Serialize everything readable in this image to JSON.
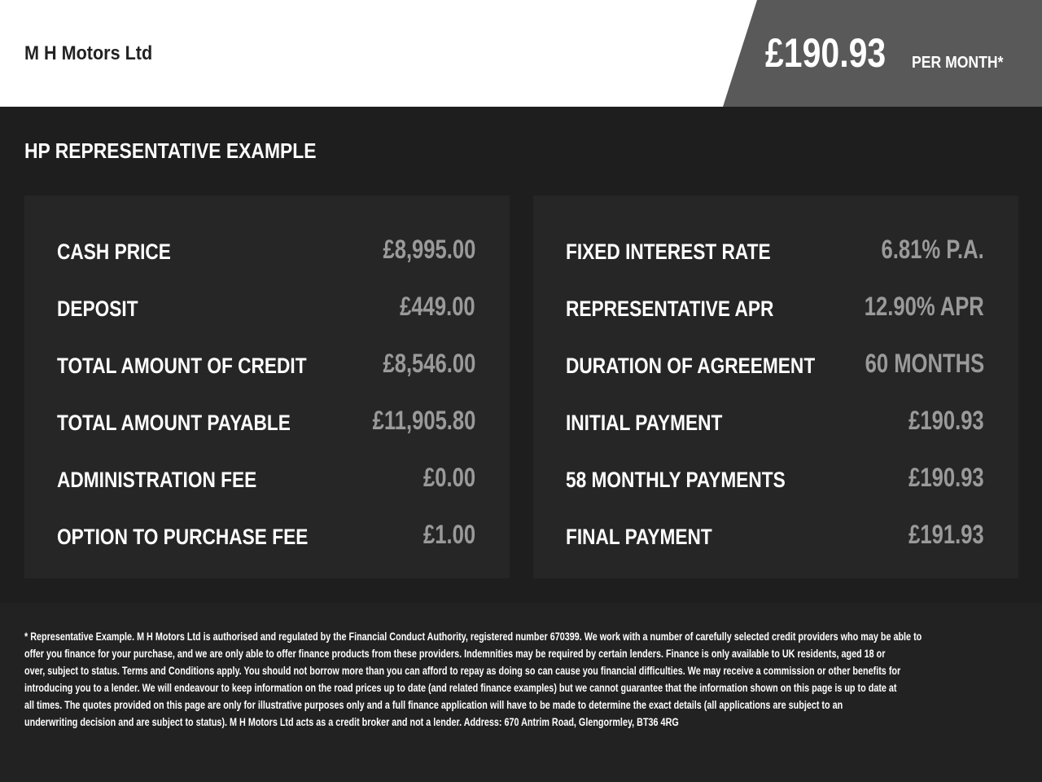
{
  "header": {
    "dealer": "M H Motors Ltd",
    "price": "£190.93",
    "per_month": "PER MONTH*"
  },
  "title": "HP REPRESENTATIVE EXAMPLE",
  "left": [
    {
      "label": "CASH PRICE",
      "value": "£8,995.00"
    },
    {
      "label": "DEPOSIT",
      "value": "£449.00"
    },
    {
      "label": "TOTAL AMOUNT OF CREDIT",
      "value": "£8,546.00"
    },
    {
      "label": "TOTAL AMOUNT PAYABLE",
      "value": "£11,905.80"
    },
    {
      "label": "ADMINISTRATION FEE",
      "value": "£0.00"
    },
    {
      "label": "OPTION TO PURCHASE FEE",
      "value": "£1.00"
    }
  ],
  "right": [
    {
      "label": "FIXED INTEREST RATE",
      "value": "6.81% P.A."
    },
    {
      "label": "REPRESENTATIVE APR",
      "value": "12.90% APR"
    },
    {
      "label": "DURATION OF AGREEMENT",
      "value": "60 MONTHS"
    },
    {
      "label": "INITIAL PAYMENT",
      "value": "£190.93"
    },
    {
      "label": "58 MONTHLY PAYMENTS",
      "value": "£190.93"
    },
    {
      "label": "FINAL PAYMENT",
      "value": "£191.93"
    }
  ],
  "disclaimer": [
    "* Representative Example. M H Motors Ltd is authorised and regulated by the Financial Conduct Authority, registered number 670399. We work with a number of carefully selected credit providers who may be able to",
    "offer you finance for your purchase, and we are only able to offer finance products from these providers. Indemnities may be required by certain lenders. Finance is only available to UK residents, aged 18 or",
    "over, subject to status. Terms and Conditions apply. You should not borrow more than you can afford to repay as doing so can cause you financial difficulties. We may receive a commission or other benefits for",
    "introducing you to a lender. We will endeavour to keep information on the road prices up to date (and related finance examples) but we cannot guarantee that the information shown on this page is up to date at",
    "all times. The quotes provided on this page are only for illustrative purposes only and a full finance application will have to be made to determine the exact details (all applications are subject to an",
    "underwriting decision and are subject to status). M H Motors Ltd acts as a credit broker and not a lender. Address: 670 Antrim Road, Glengormley, BT36 4RG"
  ]
}
